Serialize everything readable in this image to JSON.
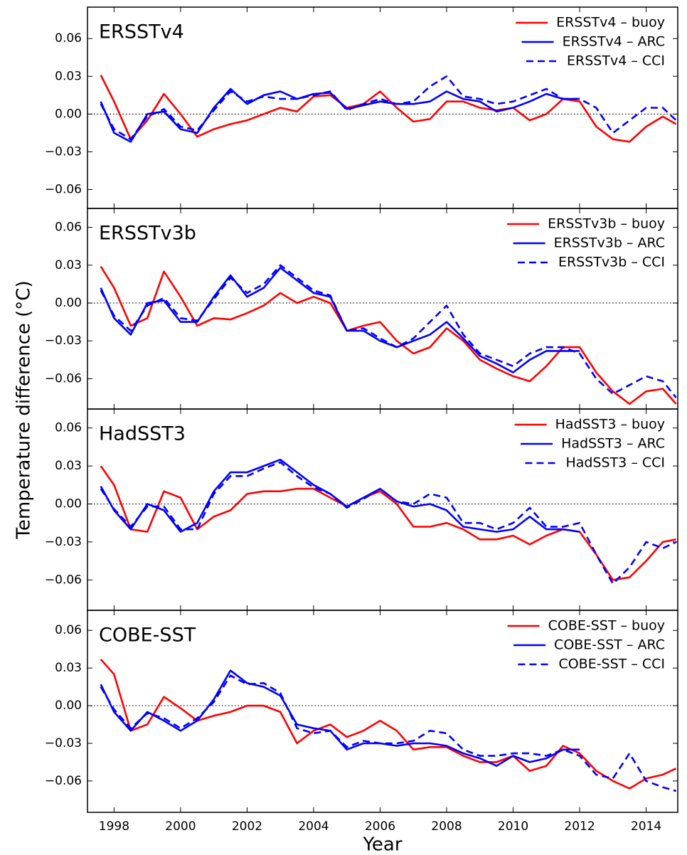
{
  "ylabel": "Temperature difference (°C)",
  "chart_data": [
    {
      "type": "line",
      "title": "ERSSTv4",
      "x": [
        1997.6,
        1998,
        1998.5,
        1999,
        1999.5,
        2000,
        2000.5,
        2001,
        2001.5,
        2002,
        2002.5,
        2003,
        2003.5,
        2004,
        2004.5,
        2005,
        2005.5,
        2006,
        2006.5,
        2007,
        2007.5,
        2008,
        2008.5,
        2009,
        2009.5,
        2010,
        2010.5,
        2011,
        2011.5,
        2012,
        2012.5,
        2013,
        2013.5,
        2014,
        2014.5,
        2014.9
      ],
      "series": [
        {
          "name": "ERSSTv4 – buoy",
          "color": "#ff0000",
          "linestyle": "solid",
          "values": [
            0.031,
            0.01,
            -0.02,
            -0.005,
            0.016,
            0.0,
            -0.018,
            -0.012,
            -0.008,
            -0.005,
            0.0,
            0.005,
            0.002,
            0.014,
            0.015,
            0.005,
            0.008,
            0.018,
            0.005,
            -0.006,
            -0.004,
            0.01,
            0.01,
            0.005,
            0.003,
            0.005,
            -0.005,
            0.0,
            0.012,
            0.01,
            -0.01,
            -0.02,
            -0.022,
            -0.01,
            -0.002,
            -0.008
          ]
        },
        {
          "name": "ERSSTv4 – ARC",
          "color": "#0000ff",
          "linestyle": "solid",
          "values": [
            0.01,
            -0.015,
            -0.022,
            0.0,
            0.002,
            -0.012,
            -0.015,
            0.005,
            0.02,
            0.008,
            0.015,
            0.018,
            0.012,
            0.016,
            0.017,
            0.004,
            0.007,
            0.01,
            0.008,
            0.008,
            0.01,
            0.018,
            0.012,
            0.01,
            0.002,
            0.005,
            0.01,
            0.016,
            0.012,
            0.012,
            null,
            null,
            null,
            null,
            null,
            null
          ]
        },
        {
          "name": "ERSSTv4 – CCI",
          "color": "#0000ff",
          "linestyle": "dashed",
          "values": [
            0.008,
            -0.012,
            -0.02,
            -0.002,
            0.004,
            -0.01,
            -0.013,
            0.003,
            0.018,
            0.01,
            0.014,
            0.012,
            0.012,
            0.015,
            0.018,
            0.003,
            0.008,
            0.012,
            0.008,
            0.01,
            0.022,
            0.03,
            0.014,
            0.012,
            0.008,
            0.01,
            0.015,
            0.02,
            0.012,
            0.012,
            0.005,
            -0.015,
            -0.005,
            0.005,
            0.005,
            -0.005
          ]
        }
      ],
      "xlim": [
        1997.2,
        2014.95
      ],
      "ylim": [
        -0.075,
        0.085
      ],
      "yticks": [
        {
          "value": -0.06,
          "label": "−0.06"
        },
        {
          "value": -0.03,
          "label": "−0.03"
        },
        {
          "value": 0,
          "label": "0.00"
        },
        {
          "value": 0.03,
          "label": "0.03"
        },
        {
          "value": 0.06,
          "label": "0.06"
        }
      ],
      "hline": 0,
      "legend": "upper right"
    },
    {
      "type": "line",
      "title": "ERSSTv3b",
      "x": [
        1997.6,
        1998,
        1998.5,
        1999,
        1999.5,
        2000,
        2000.5,
        2001,
        2001.5,
        2002,
        2002.5,
        2003,
        2003.5,
        2004,
        2004.5,
        2005,
        2005.5,
        2006,
        2006.5,
        2007,
        2007.5,
        2008,
        2008.5,
        2009,
        2009.5,
        2010,
        2010.5,
        2011,
        2011.5,
        2012,
        2012.5,
        2013,
        2013.5,
        2014,
        2014.5,
        2014.9
      ],
      "series": [
        {
          "name": "ERSSTv3b – buoy",
          "color": "#ff0000",
          "linestyle": "solid",
          "values": [
            0.029,
            0.012,
            -0.018,
            -0.012,
            0.025,
            0.005,
            -0.018,
            -0.012,
            -0.013,
            -0.008,
            -0.002,
            0.008,
            0.0,
            0.005,
            0.0,
            -0.022,
            -0.018,
            -0.015,
            -0.03,
            -0.04,
            -0.035,
            -0.02,
            -0.03,
            -0.045,
            -0.052,
            -0.058,
            -0.062,
            -0.05,
            -0.035,
            -0.035,
            -0.055,
            -0.07,
            -0.08,
            -0.07,
            -0.068,
            -0.08
          ]
        },
        {
          "name": "ERSSTv3b – ARC",
          "color": "#0000ff",
          "linestyle": "solid",
          "values": [
            0.012,
            -0.012,
            -0.025,
            0.0,
            0.002,
            -0.015,
            -0.015,
            0.005,
            0.022,
            0.005,
            0.012,
            0.028,
            0.018,
            0.008,
            0.005,
            -0.022,
            -0.022,
            -0.03,
            -0.035,
            -0.03,
            -0.025,
            -0.015,
            -0.028,
            -0.042,
            -0.048,
            -0.055,
            -0.045,
            -0.038,
            -0.038,
            -0.038,
            null,
            null,
            null,
            null,
            null,
            null
          ]
        },
        {
          "name": "ERSSTv3b – CCI",
          "color": "#0000ff",
          "linestyle": "dashed",
          "values": [
            0.01,
            -0.01,
            -0.022,
            -0.002,
            0.004,
            -0.012,
            -0.014,
            0.003,
            0.02,
            0.008,
            0.015,
            0.03,
            0.02,
            0.01,
            0.006,
            -0.022,
            -0.02,
            -0.028,
            -0.035,
            -0.028,
            -0.015,
            -0.002,
            -0.025,
            -0.04,
            -0.045,
            -0.05,
            -0.04,
            -0.035,
            -0.035,
            -0.04,
            -0.06,
            -0.072,
            -0.065,
            -0.058,
            -0.062,
            -0.075
          ]
        }
      ],
      "xlim": [
        1997.2,
        2014.95
      ],
      "ylim": [
        -0.084,
        0.075
      ],
      "yticks": [
        {
          "value": -0.06,
          "label": "−0.06"
        },
        {
          "value": -0.03,
          "label": "−0.03"
        },
        {
          "value": 0,
          "label": "0.00"
        },
        {
          "value": 0.03,
          "label": "0.03"
        },
        {
          "value": 0.06,
          "label": "0.06"
        }
      ],
      "hline": 0,
      "legend": "upper right"
    },
    {
      "type": "line",
      "title": "HadSST3",
      "x": [
        1997.6,
        1998,
        1998.5,
        1999,
        1999.5,
        2000,
        2000.5,
        2001,
        2001.5,
        2002,
        2002.5,
        2003,
        2003.5,
        2004,
        2004.5,
        2005,
        2005.5,
        2006,
        2006.5,
        2007,
        2007.5,
        2008,
        2008.5,
        2009,
        2009.5,
        2010,
        2010.5,
        2011,
        2011.5,
        2012,
        2012.5,
        2013,
        2013.5,
        2014,
        2014.5,
        2014.9
      ],
      "series": [
        {
          "name": "HadSST3 – buoy",
          "color": "#ff0000",
          "linestyle": "solid",
          "values": [
            0.03,
            0.015,
            -0.02,
            -0.022,
            0.01,
            0.005,
            -0.02,
            -0.01,
            -0.005,
            0.008,
            0.01,
            0.01,
            0.012,
            0.012,
            0.005,
            -0.002,
            0.005,
            0.01,
            0.0,
            -0.018,
            -0.018,
            -0.015,
            -0.02,
            -0.028,
            -0.028,
            -0.025,
            -0.032,
            -0.025,
            -0.02,
            -0.022,
            -0.04,
            -0.06,
            -0.058,
            -0.045,
            -0.03,
            -0.028
          ]
        },
        {
          "name": "HadSST3 – ARC",
          "color": "#0000ff",
          "linestyle": "solid",
          "values": [
            0.014,
            -0.005,
            -0.02,
            0.0,
            -0.005,
            -0.022,
            -0.015,
            0.01,
            0.025,
            0.025,
            0.03,
            0.035,
            0.025,
            0.015,
            0.008,
            -0.002,
            0.005,
            0.012,
            0.002,
            -0.002,
            0.0,
            -0.005,
            -0.018,
            -0.02,
            -0.022,
            -0.02,
            -0.01,
            -0.02,
            -0.02,
            -0.022,
            null,
            null,
            null,
            null,
            null,
            null
          ]
        },
        {
          "name": "HadSST3 – CCI",
          "color": "#0000ff",
          "linestyle": "dashed",
          "values": [
            0.012,
            -0.004,
            -0.018,
            -0.002,
            -0.002,
            -0.02,
            -0.02,
            0.008,
            0.022,
            0.022,
            0.028,
            0.033,
            0.022,
            0.013,
            0.008,
            -0.003,
            0.004,
            0.012,
            0.002,
            0.0,
            0.008,
            0.005,
            -0.015,
            -0.015,
            -0.02,
            -0.015,
            -0.003,
            -0.018,
            -0.018,
            -0.015,
            -0.04,
            -0.063,
            -0.05,
            -0.03,
            -0.035,
            -0.03
          ]
        }
      ],
      "xlim": [
        1997.2,
        2014.95
      ],
      "ylim": [
        -0.084,
        0.075
      ],
      "yticks": [
        {
          "value": -0.06,
          "label": "−0.06"
        },
        {
          "value": -0.03,
          "label": "−0.03"
        },
        {
          "value": 0,
          "label": "0.00"
        },
        {
          "value": 0.03,
          "label": "0.03"
        },
        {
          "value": 0.06,
          "label": "0.06"
        }
      ],
      "hline": 0,
      "legend": "upper right"
    },
    {
      "type": "line",
      "title": "COBE-SST",
      "xlabel": "Year",
      "x": [
        1997.6,
        1998,
        1998.5,
        1999,
        1999.5,
        2000,
        2000.5,
        2001,
        2001.5,
        2002,
        2002.5,
        2003,
        2003.5,
        2004,
        2004.5,
        2005,
        2005.5,
        2006,
        2006.5,
        2007,
        2007.5,
        2008,
        2008.5,
        2009,
        2009.5,
        2010,
        2010.5,
        2011,
        2011.5,
        2012,
        2012.5,
        2013,
        2013.5,
        2014,
        2014.5,
        2014.9
      ],
      "series": [
        {
          "name": "COBE-SST – buoy",
          "color": "#ff0000",
          "linestyle": "solid",
          "values": [
            0.037,
            0.025,
            -0.02,
            -0.015,
            0.007,
            -0.002,
            -0.012,
            -0.008,
            -0.005,
            0.0,
            0.0,
            -0.005,
            -0.03,
            -0.02,
            -0.015,
            -0.025,
            -0.02,
            -0.012,
            -0.02,
            -0.035,
            -0.033,
            -0.033,
            -0.04,
            -0.045,
            -0.045,
            -0.04,
            -0.052,
            -0.048,
            -0.032,
            -0.038,
            -0.052,
            -0.06,
            -0.066,
            -0.058,
            -0.055,
            -0.05
          ]
        },
        {
          "name": "COBE-SST – ARC",
          "color": "#0000ff",
          "linestyle": "solid",
          "values": [
            0.017,
            -0.005,
            -0.02,
            -0.005,
            -0.012,
            -0.02,
            -0.012,
            0.005,
            0.028,
            0.018,
            0.015,
            0.008,
            -0.015,
            -0.018,
            -0.02,
            -0.035,
            -0.03,
            -0.03,
            -0.032,
            -0.03,
            -0.03,
            -0.032,
            -0.038,
            -0.042,
            -0.048,
            -0.04,
            -0.045,
            -0.042,
            -0.035,
            -0.035,
            null,
            null,
            null,
            null,
            null,
            null
          ]
        },
        {
          "name": "COBE-SST – CCI",
          "color": "#0000ff",
          "linestyle": "dashed",
          "values": [
            0.015,
            -0.003,
            -0.018,
            -0.006,
            -0.01,
            -0.018,
            -0.01,
            0.003,
            0.024,
            0.017,
            0.018,
            0.01,
            -0.018,
            -0.022,
            -0.02,
            -0.033,
            -0.028,
            -0.03,
            -0.03,
            -0.028,
            -0.02,
            -0.022,
            -0.035,
            -0.04,
            -0.04,
            -0.038,
            -0.038,
            -0.04,
            -0.035,
            -0.04,
            -0.055,
            -0.058,
            -0.038,
            -0.06,
            -0.065,
            -0.068
          ]
        }
      ],
      "xlim": [
        1997.2,
        2014.95
      ],
      "ylim": [
        -0.085,
        0.076
      ],
      "yticks": [
        {
          "value": -0.06,
          "label": "−0.06"
        },
        {
          "value": -0.03,
          "label": "−0.03"
        },
        {
          "value": 0,
          "label": "0.00"
        },
        {
          "value": 0.03,
          "label": "0.03"
        },
        {
          "value": 0.06,
          "label": "0.06"
        }
      ],
      "xticks": [
        1998,
        2000,
        2002,
        2004,
        2006,
        2008,
        2010,
        2012,
        2014
      ],
      "hline": 0,
      "legend": "upper right"
    }
  ]
}
